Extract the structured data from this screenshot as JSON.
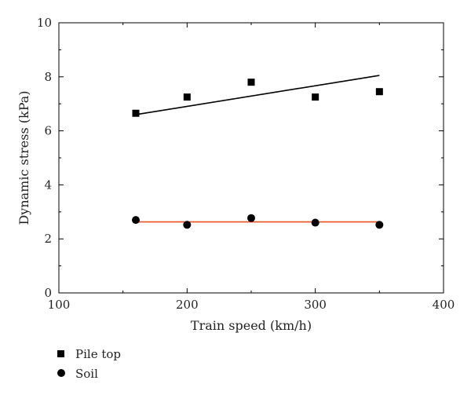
{
  "chart_data": {
    "type": "scatter",
    "title": "",
    "xlabel": "Train speed (km/h)",
    "ylabel": "Dynamic stress (kPa)",
    "xlim": [
      100,
      400
    ],
    "ylim": [
      0,
      10
    ],
    "x_ticks": [
      100,
      200,
      300,
      400
    ],
    "y_ticks": [
      0,
      2,
      4,
      6,
      8,
      10
    ],
    "grid": false,
    "legend_position": "bottom-left",
    "series": [
      {
        "name": "Pile top",
        "marker": "square",
        "color": "#000000",
        "x": [
          160,
          200,
          250,
          300,
          350
        ],
        "y": [
          6.65,
          7.25,
          7.8,
          7.25,
          7.45
        ],
        "trendline": {
          "x": [
            160,
            350
          ],
          "y": [
            6.6,
            8.05
          ],
          "color": "#000000"
        }
      },
      {
        "name": "Soil",
        "marker": "circle",
        "color": "#000000",
        "x": [
          160,
          200,
          250,
          300,
          350
        ],
        "y": [
          2.7,
          2.52,
          2.77,
          2.6,
          2.52
        ],
        "trendline": {
          "x": [
            160,
            350
          ],
          "y": [
            2.63,
            2.63
          ],
          "color": "#e8501e"
        }
      }
    ]
  }
}
